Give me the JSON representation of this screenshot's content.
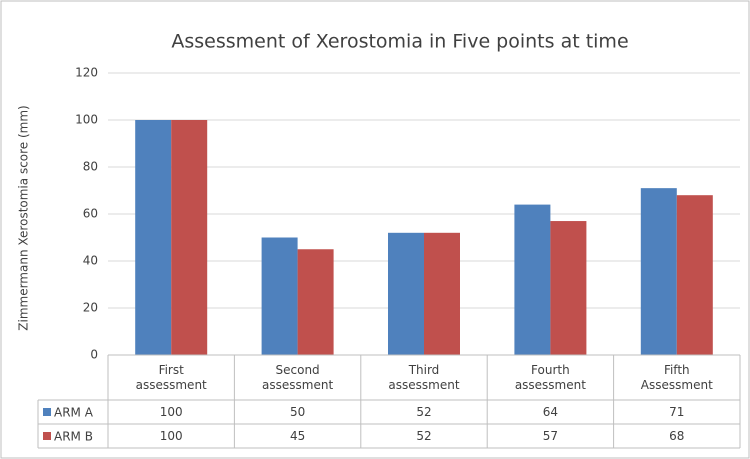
{
  "chart_data": {
    "type": "bar",
    "title": "Assessment of Xerostomia in Five points at time",
    "y_label": "Zimmermann Xerostomia score (mm)",
    "categories": [
      "First assessment",
      "Second assessment",
      "Third assessment",
      "Fourth assessment",
      "Fifth Assessment"
    ],
    "series": [
      {
        "name": "ARM A",
        "color": "#4f81bd",
        "values": [
          100,
          50,
          52,
          64,
          71
        ]
      },
      {
        "name": "ARM B",
        "color": "#c0504d",
        "values": [
          100,
          45,
          52,
          57,
          68
        ]
      }
    ],
    "ylim": [
      0,
      120
    ],
    "yticks": [
      0,
      20,
      40,
      60,
      80,
      100,
      120
    ],
    "grid": true,
    "data_table": true
  }
}
